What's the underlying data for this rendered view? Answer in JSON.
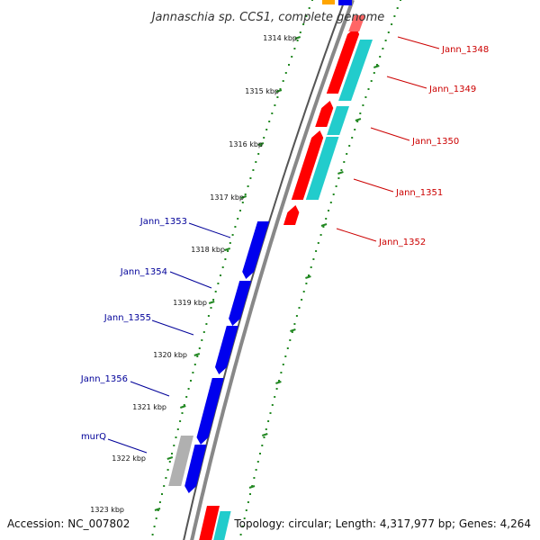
{
  "title": "Jannaschia sp. CCS1, complete genome",
  "footer": {
    "accession": "Accession: NC_007802",
    "topology": "Topology: circular; Length: 4,317,977 bp; Genes: 4,264"
  },
  "ticks": [
    "1314 kbp",
    "1315 kbp",
    "1316 kbp",
    "1317 kbp",
    "1318 kbp",
    "1319 kbp",
    "1320 kbp",
    "1321 kbp",
    "1322 kbp",
    "1323 kbp"
  ],
  "forward_genes": [
    {
      "label": "Jann_1348"
    },
    {
      "label": "Jann_1349"
    },
    {
      "label": "Jann_1350"
    },
    {
      "label": "Jann_1351"
    },
    {
      "label": "Jann_1352"
    }
  ],
  "reverse_genes": [
    {
      "label": "Jann_1353"
    },
    {
      "label": "Jann_1354"
    },
    {
      "label": "Jann_1355"
    },
    {
      "label": "Jann_1356"
    },
    {
      "label": "murQ"
    }
  ],
  "colors": {
    "forward_cds": "#ff0000",
    "forward_feature": "#22cccc",
    "reverse_cds": "#0000ee",
    "reverse_feature": "#b0b0b0",
    "backbone": "#888888",
    "gc_dots": "#228822",
    "forward_label": "#cc0000",
    "reverse_label": "#000099",
    "top_orange": "#ffa500"
  }
}
